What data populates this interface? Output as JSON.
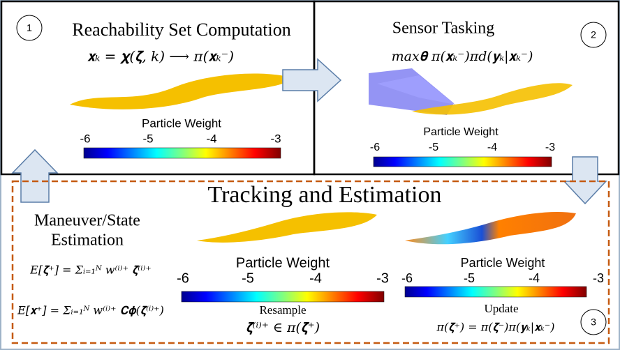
{
  "panels": [
    {
      "number": "1",
      "title": "Reachability Set Computation",
      "equation": "𝐱ₖ = 𝛘(𝛇, k) ⟶ π(𝐱ₖ⁻)",
      "colorbar": {
        "label": "Particle Weight",
        "ticks": [
          "-6",
          "-5",
          "-4",
          "-3"
        ]
      }
    },
    {
      "number": "2",
      "title": "Sensor Tasking",
      "equation": "max𝛉  π(𝐱ₖ⁻)π𝑑(𝐲ₖ|𝐱ₖ⁻)",
      "colorbar": {
        "label": "Particle Weight",
        "ticks": [
          "-6",
          "-5",
          "-4",
          "-3"
        ]
      }
    }
  ],
  "tracking": {
    "number": "3",
    "title": "Tracking and Estimation",
    "estimation": {
      "title": [
        "Maneuver/State",
        "Estimation"
      ],
      "equations": [
        "E[𝛇⁺] = Σᵢ₌₁ᴺ w⁽ⁱ⁾⁺ 𝛇⁽ⁱ⁾⁺",
        "E[𝐱⁺] = Σᵢ₌₁ᴺ w⁽ⁱ⁾⁺ 𝐂𝛟(𝛇⁽ⁱ⁾⁺)"
      ]
    },
    "resample": {
      "colorbar": {
        "label": "Particle Weight",
        "ticks": [
          "-6",
          "-5",
          "-4",
          "-3"
        ]
      },
      "label": "Resample",
      "equation": "𝛇⁽ⁱ⁾⁺ ∈ π(𝛇⁺)"
    },
    "update": {
      "colorbar": {
        "label": "Particle Weight",
        "ticks": [
          "-6",
          "-5",
          "-4",
          "-3"
        ]
      },
      "label": "Update",
      "equation": "π(𝛇⁺) = π(𝛇⁻)π(𝐲ₖ|𝐱ₖ⁻)"
    }
  }
}
